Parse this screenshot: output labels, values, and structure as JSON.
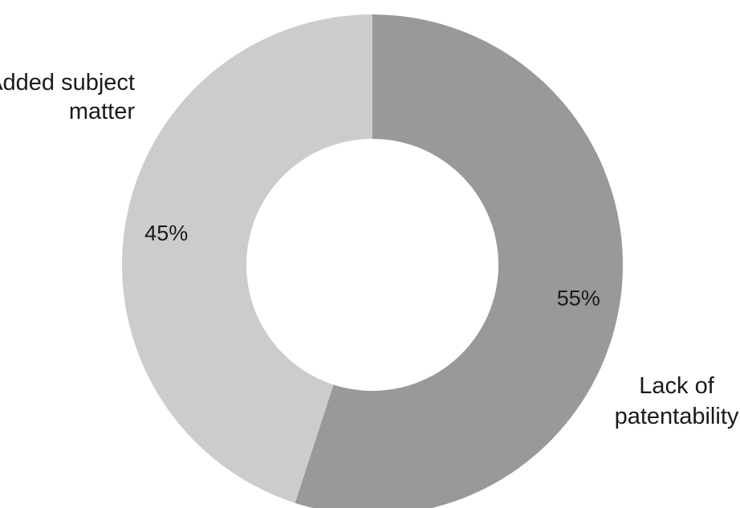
{
  "chart_data": {
    "type": "pie",
    "donut": true,
    "slices": [
      {
        "label_lines": [
          "Lack of",
          "patentability"
        ],
        "value": 55,
        "value_label": "55%",
        "color": "#999999"
      },
      {
        "label_lines": [
          "Added subject",
          "matter"
        ],
        "value": 45,
        "value_label": "45%",
        "color": "#cccccc"
      }
    ],
    "start": "12 o'clock",
    "direction": "clockwise",
    "legend": "none"
  }
}
